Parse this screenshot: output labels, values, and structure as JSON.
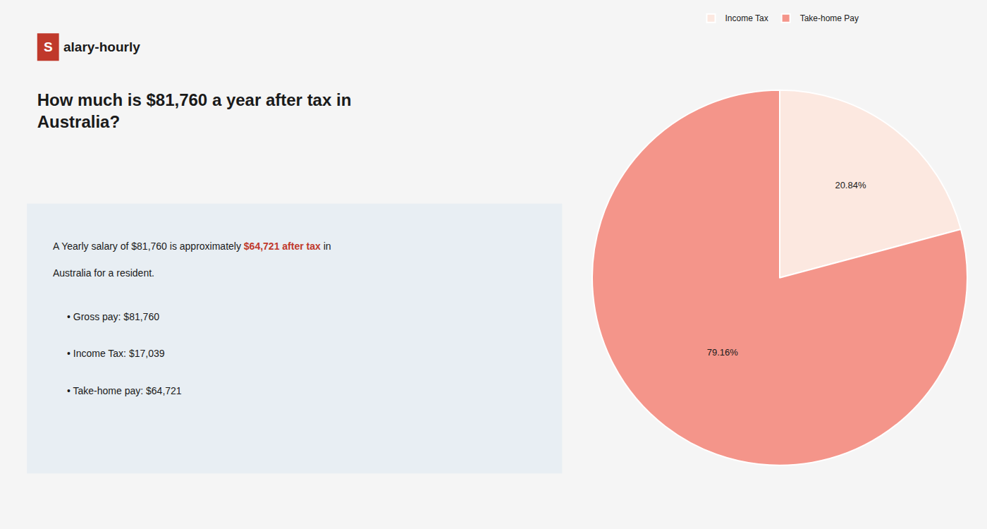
{
  "chart_data": {
    "type": "pie",
    "title": "How much is $81,760 a year after tax in\nAustralia?",
    "annotations": [
      "S",
      "alary-hourly",
      "A Yearly salary of $81,760 is approximately ",
      "$64,721 after tax",
      " in",
      "Australia for a resident.",
      "• Gross pay: $81,760",
      "• Income Tax: $17,039",
      "• Take-home pay: $64,721"
    ],
    "categories": [
      "Income Tax",
      "Take-home Pay"
    ],
    "values": [
      20.84,
      79.16
    ],
    "value_labels": [
      "20.84%",
      "79.16%"
    ],
    "colors": [
      "#fce8e0",
      "#f4958a"
    ],
    "data_labels": true,
    "legend": "top"
  }
}
